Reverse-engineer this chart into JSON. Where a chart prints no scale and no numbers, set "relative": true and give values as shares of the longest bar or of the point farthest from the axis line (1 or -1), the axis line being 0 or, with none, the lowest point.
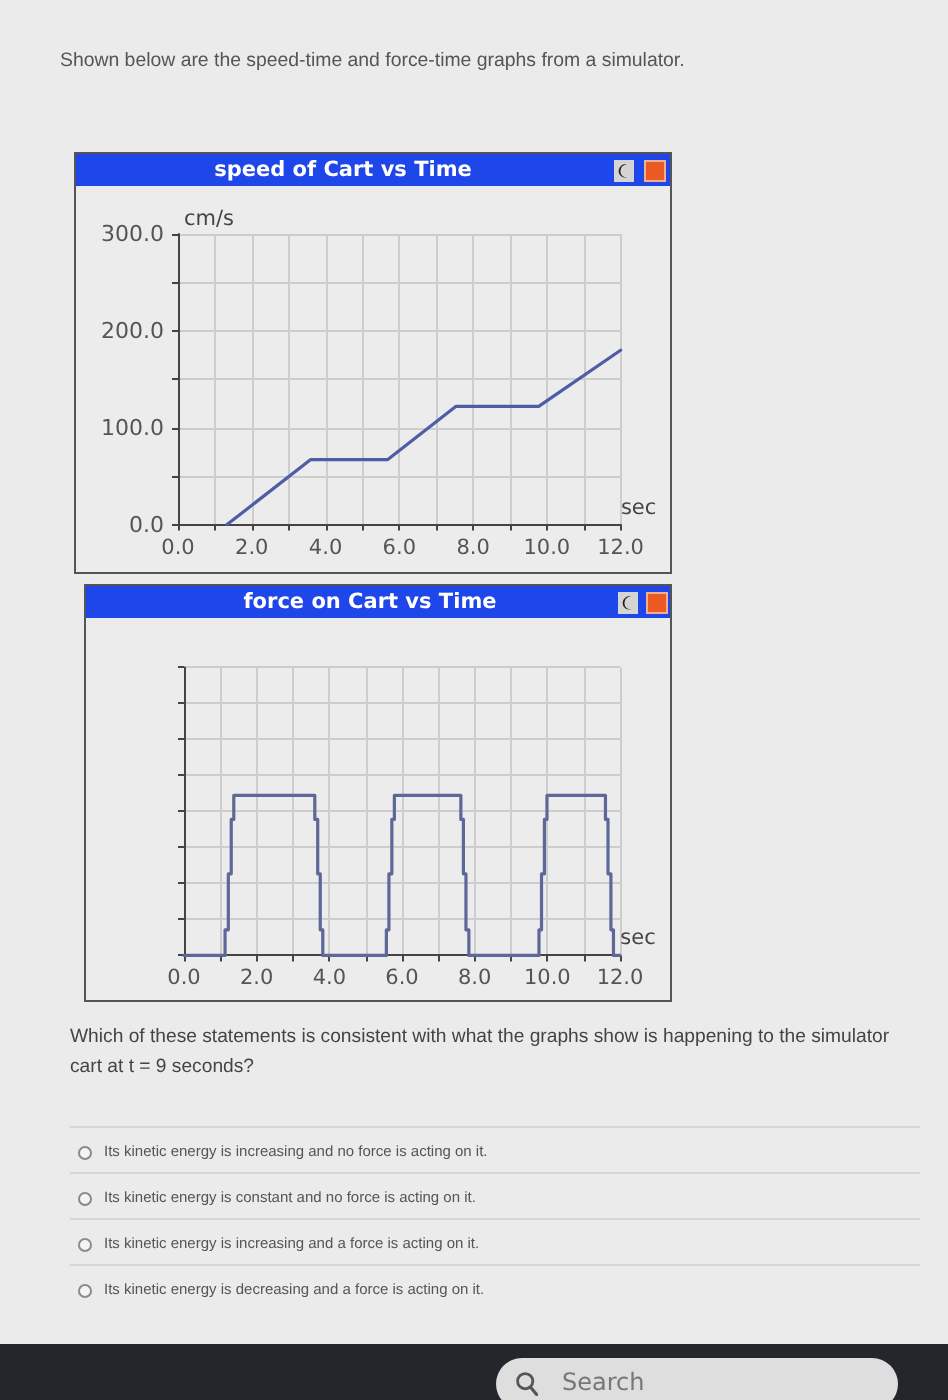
{
  "chart_data": [
    {
      "type": "line",
      "title": "speed of Cart vs Time",
      "xlabel": "sec",
      "ylabel": "cm/s",
      "annotations": [
        "Shown below are the speed-time and force-time graphs from a simulator."
      ],
      "x": [
        1.33,
        3.59,
        5.68,
        7.53,
        9.78,
        12.0
      ],
      "values": [
        0,
        67,
        67,
        122,
        122,
        180
      ],
      "color": "#4e5ea6",
      "xlim": [
        0,
        12
      ],
      "xticks": [
        {
          "value": 0,
          "label": "0.0"
        },
        {
          "value": 1,
          "label": null
        },
        {
          "value": 2,
          "label": "2.0"
        },
        {
          "value": 3,
          "label": null
        },
        {
          "value": 4,
          "label": "4.0"
        },
        {
          "value": 5,
          "label": null
        },
        {
          "value": 6,
          "label": "6.0"
        },
        {
          "value": 7,
          "label": null
        },
        {
          "value": 8,
          "label": "8.0"
        },
        {
          "value": 9,
          "label": null
        },
        {
          "value": 10,
          "label": "10.0"
        },
        {
          "value": 11,
          "label": null
        },
        {
          "value": 12,
          "label": "12.0"
        }
      ],
      "ylim": [
        0,
        300
      ],
      "yticks": [
        {
          "value": 0,
          "label": "0.0"
        },
        {
          "value": 50,
          "label": null
        },
        {
          "value": 100,
          "label": "100.0"
        },
        {
          "value": 150,
          "label": null
        },
        {
          "value": 200,
          "label": "200.0"
        },
        {
          "value": 250,
          "label": null
        },
        {
          "value": 300,
          "label": "300.0"
        }
      ],
      "grid": true
    },
    {
      "type": "step",
      "title": "force on Cart vs Time",
      "xlabel": "sec",
      "relative": true,
      "x": [
        0,
        1.13,
        1.22,
        1.3,
        1.37,
        3.6,
        3.68,
        3.75,
        3.82,
        5.57,
        5.64,
        5.72,
        5.79,
        7.62,
        7.69,
        7.76,
        7.84,
        9.77,
        9.84,
        9.92,
        9.99,
        11.6,
        11.67,
        11.75,
        11.82,
        12.0
      ],
      "values": [
        0,
        0.16,
        0.51,
        0.85,
        1,
        0.85,
        0.51,
        0.16,
        0,
        0.16,
        0.51,
        0.85,
        1,
        0.85,
        0.51,
        0.16,
        0,
        0.16,
        0.51,
        0.85,
        1,
        0.85,
        0.51,
        0.16,
        0,
        0
      ],
      "color": "#5d6898",
      "xlim": [
        0,
        12
      ],
      "xticks": [
        {
          "value": 0,
          "label": "0.0"
        },
        {
          "value": 1,
          "label": null
        },
        {
          "value": 2,
          "label": "2.0"
        },
        {
          "value": 3,
          "label": null
        },
        {
          "value": 4,
          "label": "4.0"
        },
        {
          "value": 5,
          "label": null
        },
        {
          "value": 6,
          "label": "6.0"
        },
        {
          "value": 7,
          "label": null
        },
        {
          "value": 8,
          "label": "8.0"
        },
        {
          "value": 9,
          "label": null
        },
        {
          "value": 10,
          "label": "10.0"
        },
        {
          "value": 11,
          "label": null
        },
        {
          "value": 12,
          "label": "12.0"
        }
      ],
      "grid": true,
      "tick_labels": "x"
    },
    {
      "type": "other",
      "title": "Which of these statements is consistent with what the graphs show is happening to the simulator cart at t = 9 seconds?",
      "annotations": [
        "Its kinetic energy is increasing and no force is acting on it.",
        "Its kinetic energy is constant and no force is acting on it.",
        "Its kinetic energy is increasing and a force is acting on it.",
        "Its kinetic energy is decreasing and a force is acting on it."
      ]
    },
    {
      "type": "other",
      "annotations": [
        "Search"
      ]
    }
  ]
}
